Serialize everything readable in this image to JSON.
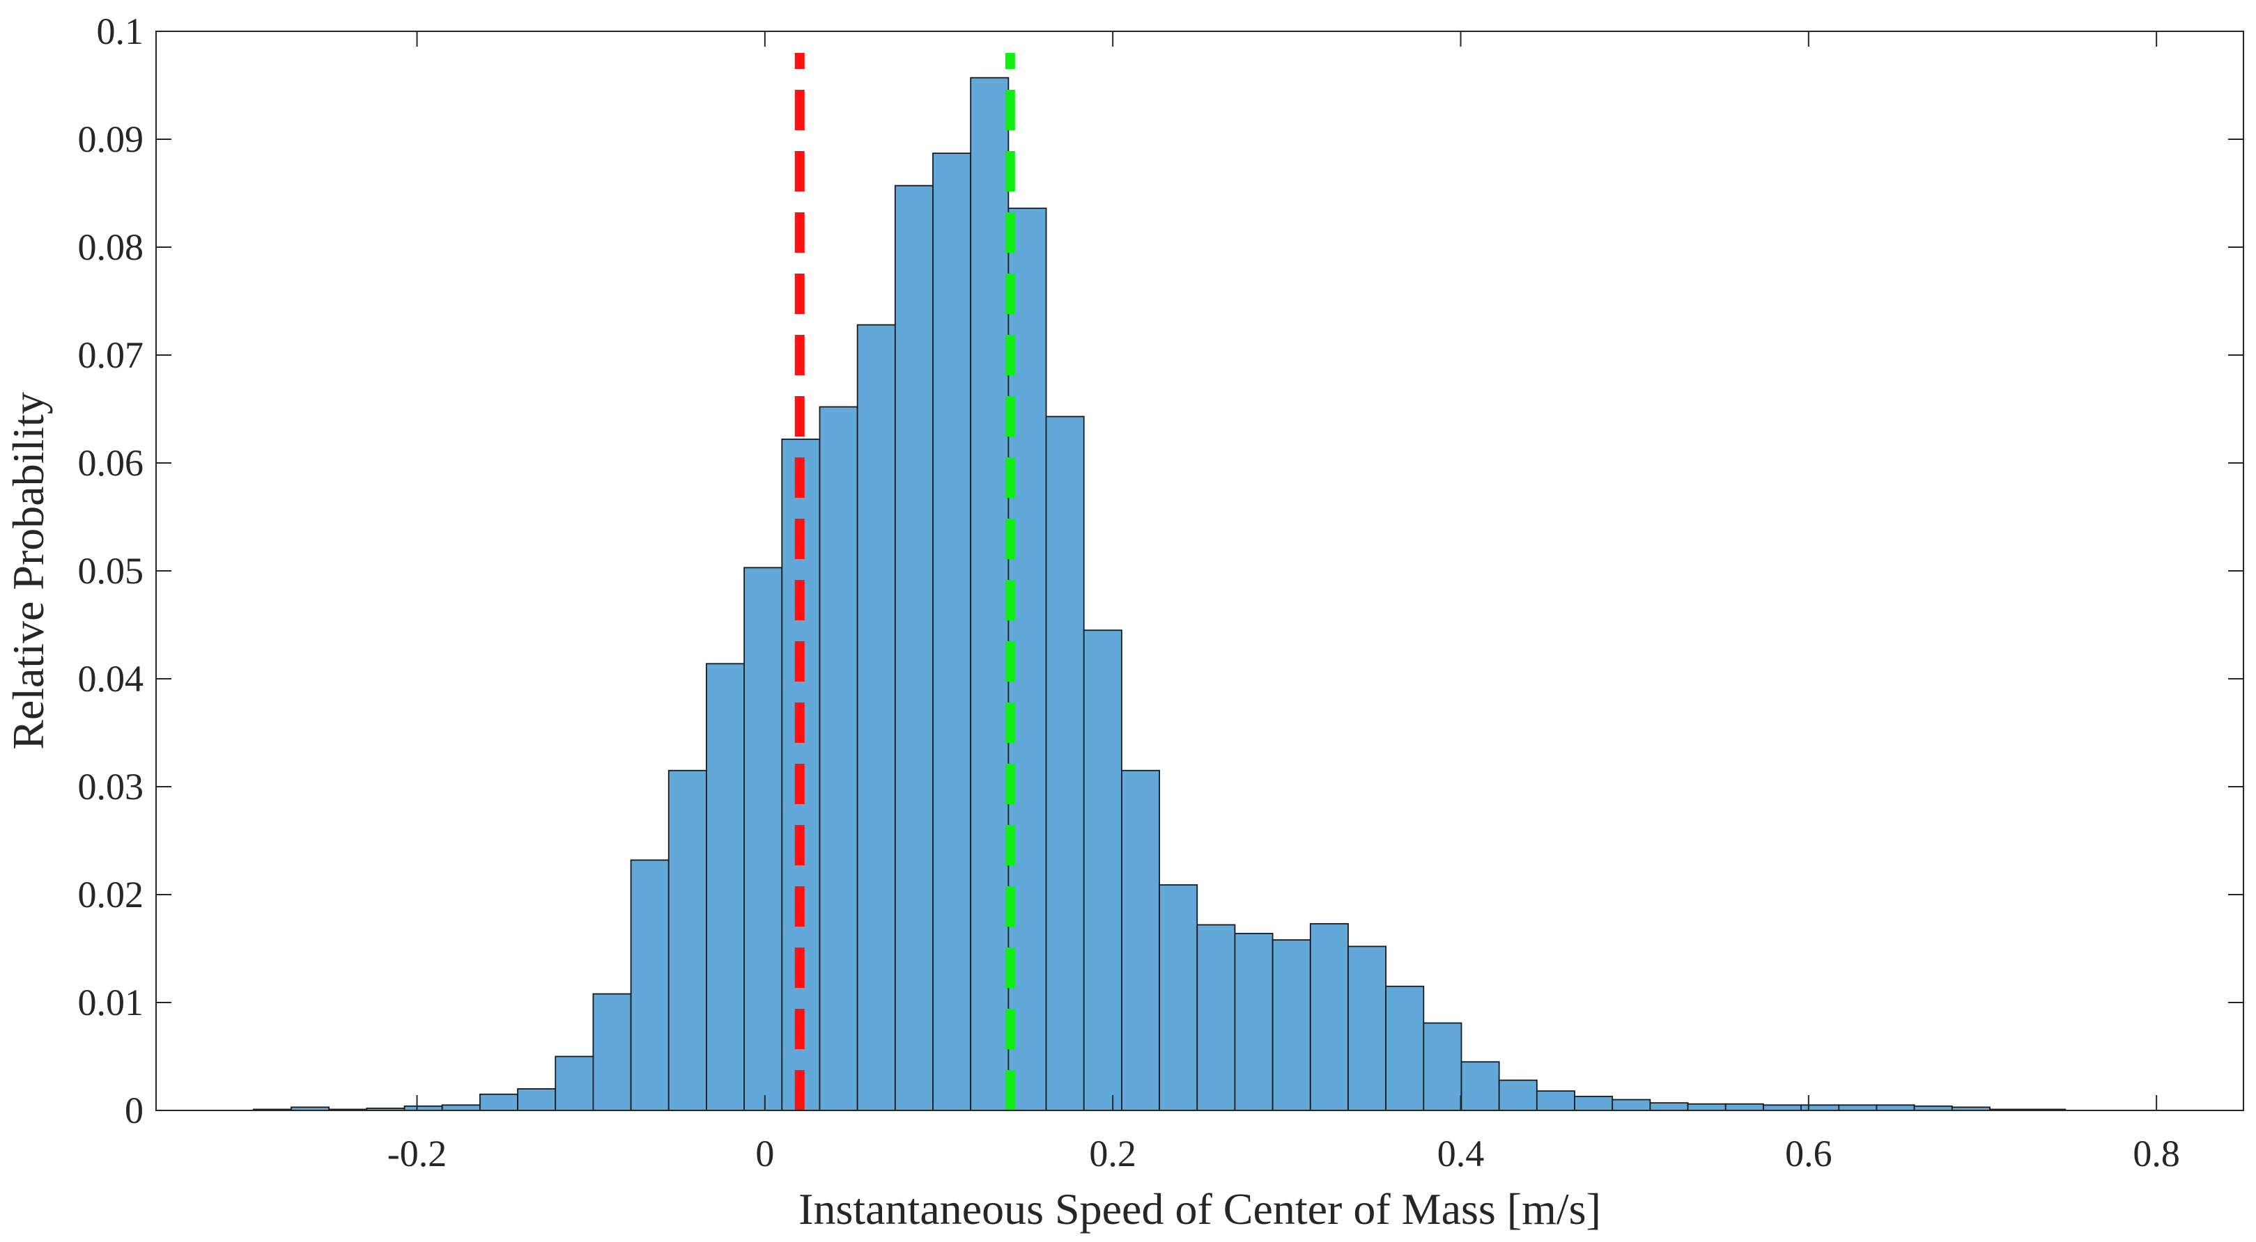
{
  "chart_data": {
    "type": "bar",
    "title": "",
    "xlabel": "Instantaneous Speed of Center of Mass [m/s]",
    "ylabel": "Relative Probability",
    "xlim": [
      -0.35,
      0.85
    ],
    "ylim": [
      0,
      0.1
    ],
    "xticks": [
      -0.2,
      0,
      0.2,
      0.4,
      0.6,
      0.8
    ],
    "xtick_labels": [
      "-0.2",
      "0",
      "0.2",
      "0.4",
      "0.6",
      "0.8"
    ],
    "yticks": [
      0,
      0.01,
      0.02,
      0.03,
      0.04,
      0.05,
      0.06,
      0.07,
      0.08,
      0.09,
      0.1
    ],
    "ytick_labels": [
      "0",
      "0.01",
      "0.02",
      "0.03",
      "0.04",
      "0.05",
      "0.06",
      "0.07",
      "0.08",
      "0.09",
      "0.1"
    ],
    "bin_width": 0.0217,
    "bin_edges_start": -0.294,
    "values": [
      0.0001,
      0.0003,
      0.0001,
      0.0002,
      0.0004,
      0.0005,
      0.0015,
      0.002,
      0.005,
      0.0108,
      0.0232,
      0.0315,
      0.0414,
      0.0503,
      0.0622,
      0.0652,
      0.0728,
      0.0857,
      0.0887,
      0.0957,
      0.0836,
      0.0643,
      0.0445,
      0.0315,
      0.0209,
      0.0172,
      0.0164,
      0.0158,
      0.0173,
      0.0152,
      0.0115,
      0.0081,
      0.0045,
      0.0028,
      0.0018,
      0.0013,
      0.001,
      0.0007,
      0.0006,
      0.0006,
      0.0005,
      0.0005,
      0.0005,
      0.0005,
      0.0004,
      0.0003,
      0.0001,
      0.0001
    ],
    "bar_color": "#62A8D8",
    "bar_edge_color": "#1a1a1a",
    "reference_lines": [
      {
        "x": 0.02,
        "color": "#ff1111",
        "style": "dashed"
      },
      {
        "x": 0.141,
        "color": "#11ee11",
        "style": "dashed"
      }
    ],
    "grid": false,
    "box": true
  }
}
